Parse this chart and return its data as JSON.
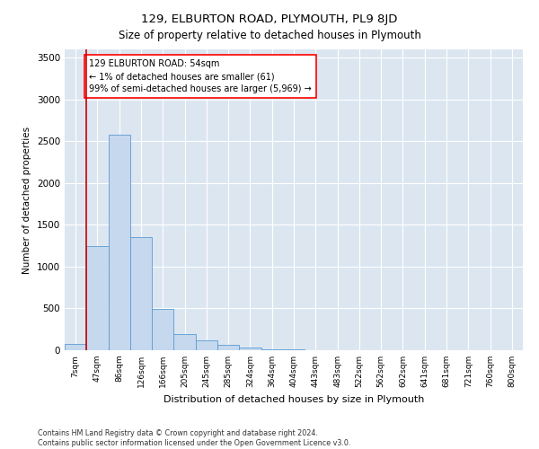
{
  "title": "129, ELBURTON ROAD, PLYMOUTH, PL9 8JD",
  "subtitle": "Size of property relative to detached houses in Plymouth",
  "xlabel": "Distribution of detached houses by size in Plymouth",
  "ylabel": "Number of detached properties",
  "bar_color": "#c5d8ed",
  "bar_edge_color": "#5b9bd5",
  "background_color": "#dce6f1",
  "grid_color": "#ffffff",
  "annotation_line1": "129 ELBURTON ROAD: 54sqm",
  "annotation_line2": "← 1% of detached houses are smaller (61)",
  "annotation_line3": "99% of semi-detached houses are larger (5,969) →",
  "vline_color": "#cc0000",
  "vline_linewidth": 1.2,
  "bins": [
    "7sqm",
    "47sqm",
    "86sqm",
    "126sqm",
    "166sqm",
    "205sqm",
    "245sqm",
    "285sqm",
    "324sqm",
    "364sqm",
    "404sqm",
    "443sqm",
    "483sqm",
    "522sqm",
    "562sqm",
    "602sqm",
    "641sqm",
    "681sqm",
    "721sqm",
    "760sqm",
    "800sqm"
  ],
  "values": [
    75,
    1250,
    2575,
    1350,
    490,
    195,
    120,
    65,
    35,
    15,
    8,
    4,
    2,
    1,
    0,
    0,
    0,
    0,
    0,
    0,
    0
  ],
  "ylim": [
    0,
    3600
  ],
  "yticks": [
    0,
    500,
    1000,
    1500,
    2000,
    2500,
    3000,
    3500
  ],
  "footer_line1": "Contains HM Land Registry data © Crown copyright and database right 2024.",
  "footer_line2": "Contains public sector information licensed under the Open Government Licence v3.0.",
  "figsize": [
    6.0,
    5.0
  ],
  "dpi": 100
}
